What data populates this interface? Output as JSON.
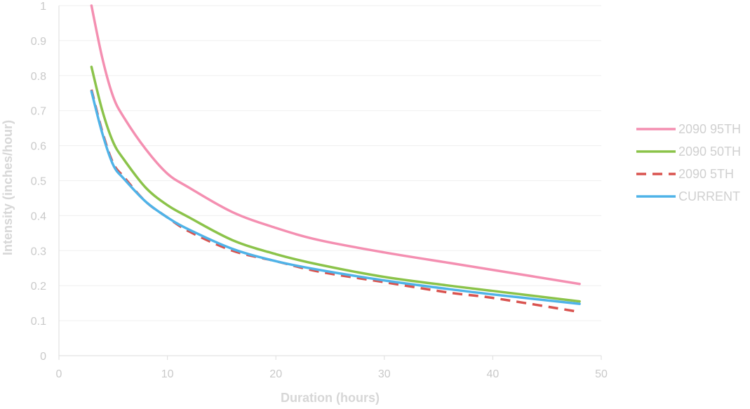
{
  "chart_data": {
    "type": "line",
    "title": "",
    "xlabel": "Duration (hours)",
    "ylabel": "Intensity (inches/hour)",
    "xlim": [
      0,
      50
    ],
    "ylim": [
      0,
      1
    ],
    "x_ticks": [
      0,
      10,
      20,
      30,
      40,
      50
    ],
    "y_ticks": [
      0,
      0.1,
      0.2,
      0.3,
      0.4,
      0.5,
      0.6,
      0.7,
      0.8,
      0.9,
      1
    ],
    "x_tick_labels": [
      "0",
      "10",
      "20",
      "30",
      "40",
      "50"
    ],
    "y_tick_labels": [
      "0",
      "0.1",
      "0.2",
      "0.3",
      "0.4",
      "0.5",
      "0.6",
      "0.7",
      "0.8",
      "0.9",
      "1"
    ],
    "grid": "horizontal",
    "legend_position": "right",
    "x": [
      3,
      4,
      5,
      6,
      8,
      10,
      12,
      16,
      20,
      24,
      30,
      36,
      40,
      48
    ],
    "series": [
      {
        "name": "2090 95TH",
        "color": "#f48fb1",
        "dash": "solid",
        "values": [
          1.0,
          0.85,
          0.74,
          0.68,
          0.59,
          0.52,
          0.48,
          0.41,
          0.365,
          0.33,
          0.295,
          0.265,
          0.245,
          0.205
        ]
      },
      {
        "name": "2090 50TH",
        "color": "#8bc34a",
        "dash": "solid",
        "values": [
          0.825,
          0.7,
          0.61,
          0.56,
          0.48,
          0.43,
          0.395,
          0.33,
          0.29,
          0.26,
          0.225,
          0.2,
          0.185,
          0.155
        ]
      },
      {
        "name": "2090 5TH",
        "color": "#d9534f",
        "dash": "dashed",
        "values": [
          0.76,
          0.64,
          0.55,
          0.51,
          0.44,
          0.395,
          0.355,
          0.3,
          0.27,
          0.24,
          0.21,
          0.18,
          0.165,
          0.125
        ]
      },
      {
        "name": "CURRENT",
        "color": "#4fb3e8",
        "dash": "solid",
        "values": [
          0.755,
          0.635,
          0.545,
          0.505,
          0.44,
          0.395,
          0.36,
          0.305,
          0.27,
          0.245,
          0.215,
          0.19,
          0.175,
          0.148
        ]
      }
    ]
  }
}
